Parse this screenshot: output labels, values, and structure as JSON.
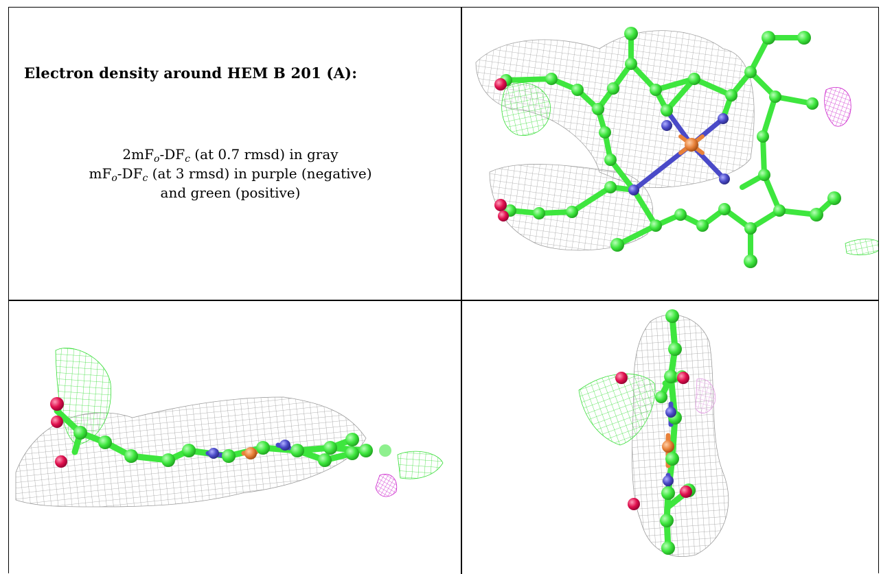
{
  "panel_title": "Electron density around HEM B 201 (A):",
  "legend": {
    "line1_prefix": "2mF",
    "line1_sub_o": "o",
    "line1_mid": "-DF",
    "line1_sub_c": "c",
    "line1_suffix": " (at 0.7 rmsd) in gray",
    "line2_prefix": "mF",
    "line2_sub_o": "o",
    "line2_mid": "-DF",
    "line2_sub_c": "c",
    "line2_suffix": " (at 3 rmsd) in purple (negative)",
    "line3": "and green (positive)"
  },
  "colors": {
    "carbon": "#3ee63e",
    "nitrogen": "#4a4ac8",
    "oxygen": "#e0104e",
    "iron": "#e8823a",
    "density_gray": "#9a9a9a",
    "density_green": "#33dd33",
    "density_purple": "#cc22cc"
  }
}
